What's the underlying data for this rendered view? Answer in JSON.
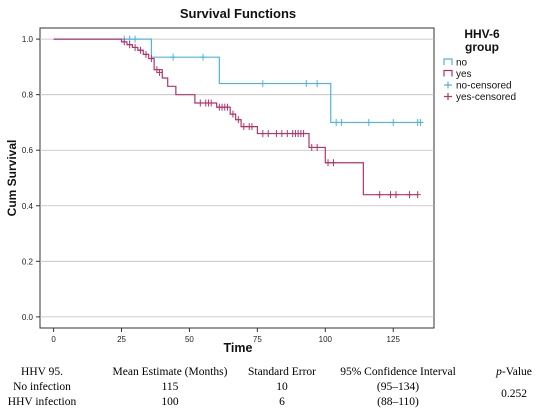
{
  "chart_data": {
    "type": "line",
    "title": "Survival Functions",
    "xlabel": "Time",
    "ylabel": "Cum Survival",
    "xlim": [
      -5,
      140
    ],
    "ylim": [
      -0.04,
      1.04
    ],
    "x_ticks": [
      0,
      25,
      50,
      75,
      100,
      125
    ],
    "y_ticks": [
      0.0,
      0.2,
      0.4,
      0.6,
      0.8,
      1.0
    ],
    "y_tick_labels": [
      "0.0",
      "0.2",
      "0.4",
      "0.6",
      "0.8",
      "1.0"
    ],
    "grid": "horizontal",
    "legend": {
      "title_line1": "HHV-6",
      "title_line2": "group",
      "position": "right",
      "entries": [
        {
          "label": "no",
          "color": "#4fb4e0",
          "marker": "line"
        },
        {
          "label": "yes",
          "color": "#b5336b",
          "marker": "line"
        },
        {
          "label": "no-censored",
          "color": "#4fb4e0",
          "marker": "plus"
        },
        {
          "label": "yes-censored",
          "color": "#b5336b",
          "marker": "plus"
        }
      ]
    },
    "series": [
      {
        "name": "no",
        "color": "#4fb4e0",
        "steps": [
          [
            0,
            1.0
          ],
          [
            36,
            0.935
          ],
          [
            61,
            0.84
          ],
          [
            102,
            0.7
          ],
          [
            136,
            0.7
          ]
        ],
        "censored": [
          [
            26,
            1.0
          ],
          [
            28,
            1.0
          ],
          [
            30,
            1.0
          ],
          [
            44,
            0.935
          ],
          [
            55,
            0.935
          ],
          [
            77,
            0.84
          ],
          [
            93,
            0.84
          ],
          [
            97,
            0.84
          ],
          [
            104,
            0.7
          ],
          [
            106,
            0.7
          ],
          [
            116,
            0.7
          ],
          [
            125,
            0.7
          ],
          [
            134,
            0.7
          ],
          [
            135,
            0.7
          ]
        ]
      },
      {
        "name": "yes",
        "color": "#b5336b",
        "steps": [
          [
            0,
            1.0
          ],
          [
            25,
            0.99
          ],
          [
            27,
            0.98
          ],
          [
            29,
            0.97
          ],
          [
            31,
            0.96
          ],
          [
            33,
            0.945
          ],
          [
            35,
            0.93
          ],
          [
            37,
            0.89
          ],
          [
            40,
            0.86
          ],
          [
            42,
            0.83
          ],
          [
            45,
            0.8
          ],
          [
            52,
            0.77
          ],
          [
            60,
            0.755
          ],
          [
            65,
            0.73
          ],
          [
            67,
            0.71
          ],
          [
            69,
            0.685
          ],
          [
            75,
            0.66
          ],
          [
            94,
            0.61
          ],
          [
            100,
            0.555
          ],
          [
            114,
            0.44
          ],
          [
            134,
            0.44
          ]
        ],
        "censored": [
          [
            26,
            0.99
          ],
          [
            28,
            0.98
          ],
          [
            30,
            0.97
          ],
          [
            32,
            0.96
          ],
          [
            34,
            0.945
          ],
          [
            36,
            0.93
          ],
          [
            38,
            0.89
          ],
          [
            39,
            0.88
          ],
          [
            54,
            0.77
          ],
          [
            56,
            0.77
          ],
          [
            57,
            0.77
          ],
          [
            58,
            0.77
          ],
          [
            61,
            0.755
          ],
          [
            62,
            0.755
          ],
          [
            63,
            0.755
          ],
          [
            64,
            0.755
          ],
          [
            66,
            0.73
          ],
          [
            68,
            0.71
          ],
          [
            70,
            0.685
          ],
          [
            72,
            0.685
          ],
          [
            73,
            0.685
          ],
          [
            77,
            0.66
          ],
          [
            79,
            0.66
          ],
          [
            82,
            0.66
          ],
          [
            84,
            0.66
          ],
          [
            86,
            0.66
          ],
          [
            88,
            0.66
          ],
          [
            89,
            0.66
          ],
          [
            90,
            0.66
          ],
          [
            91,
            0.66
          ],
          [
            92,
            0.66
          ],
          [
            95,
            0.61
          ],
          [
            97,
            0.61
          ],
          [
            101,
            0.555
          ],
          [
            103,
            0.555
          ],
          [
            120,
            0.44
          ],
          [
            124,
            0.44
          ],
          [
            126,
            0.44
          ],
          [
            131,
            0.44
          ],
          [
            134,
            0.44
          ]
        ]
      }
    ]
  },
  "results_table": {
    "headers": [
      "HHV 95.",
      "Mean Estimate (Months)",
      "Standard Error",
      "95% Confidence Interval",
      "p-Value"
    ],
    "header_p_italic": "p",
    "header_p_rest": "-Value",
    "rows": [
      [
        "No infection",
        "115",
        "10",
        "(95–134)"
      ],
      [
        "HHV infection",
        "100",
        "6",
        "(88–110)"
      ]
    ],
    "p_value": "0.252"
  }
}
